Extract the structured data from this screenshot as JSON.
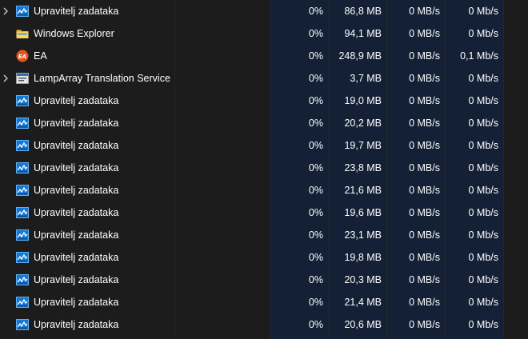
{
  "rows": [
    {
      "name": "Upravitelj zadataka",
      "icon": "task-manager-icon",
      "expandable": true,
      "cpu": "0%",
      "memory": "86,8 MB",
      "disk": "0 MB/s",
      "network": "0 Mb/s"
    },
    {
      "name": "Windows Explorer",
      "icon": "folder-icon",
      "expandable": false,
      "cpu": "0%",
      "memory": "94,1 MB",
      "disk": "0 MB/s",
      "network": "0 Mb/s"
    },
    {
      "name": "EA",
      "icon": "ea-logo-icon",
      "expandable": false,
      "cpu": "0%",
      "memory": "248,9 MB",
      "disk": "0 MB/s",
      "network": "0,1 Mb/s"
    },
    {
      "name": "LampArray Translation Service",
      "icon": "service-window-icon",
      "expandable": true,
      "cpu": "0%",
      "memory": "3,7 MB",
      "disk": "0 MB/s",
      "network": "0 Mb/s"
    },
    {
      "name": "Upravitelj zadataka",
      "icon": "task-manager-icon",
      "expandable": false,
      "cpu": "0%",
      "memory": "19,0 MB",
      "disk": "0 MB/s",
      "network": "0 Mb/s"
    },
    {
      "name": "Upravitelj zadataka",
      "icon": "task-manager-icon",
      "expandable": false,
      "cpu": "0%",
      "memory": "20,2 MB",
      "disk": "0 MB/s",
      "network": "0 Mb/s"
    },
    {
      "name": "Upravitelj zadataka",
      "icon": "task-manager-icon",
      "expandable": false,
      "cpu": "0%",
      "memory": "19,7 MB",
      "disk": "0 MB/s",
      "network": "0 Mb/s"
    },
    {
      "name": "Upravitelj zadataka",
      "icon": "task-manager-icon",
      "expandable": false,
      "cpu": "0%",
      "memory": "23,8 MB",
      "disk": "0 MB/s",
      "network": "0 Mb/s"
    },
    {
      "name": "Upravitelj zadataka",
      "icon": "task-manager-icon",
      "expandable": false,
      "cpu": "0%",
      "memory": "21,6 MB",
      "disk": "0 MB/s",
      "network": "0 Mb/s"
    },
    {
      "name": "Upravitelj zadataka",
      "icon": "task-manager-icon",
      "expandable": false,
      "cpu": "0%",
      "memory": "19,6 MB",
      "disk": "0 MB/s",
      "network": "0 Mb/s"
    },
    {
      "name": "Upravitelj zadataka",
      "icon": "task-manager-icon",
      "expandable": false,
      "cpu": "0%",
      "memory": "23,1 MB",
      "disk": "0 MB/s",
      "network": "0 Mb/s"
    },
    {
      "name": "Upravitelj zadataka",
      "icon": "task-manager-icon",
      "expandable": false,
      "cpu": "0%",
      "memory": "19,8 MB",
      "disk": "0 MB/s",
      "network": "0 Mb/s"
    },
    {
      "name": "Upravitelj zadataka",
      "icon": "task-manager-icon",
      "expandable": false,
      "cpu": "0%",
      "memory": "20,3 MB",
      "disk": "0 MB/s",
      "network": "0 Mb/s"
    },
    {
      "name": "Upravitelj zadataka",
      "icon": "task-manager-icon",
      "expandable": false,
      "cpu": "0%",
      "memory": "21,4 MB",
      "disk": "0 MB/s",
      "network": "0 Mb/s"
    },
    {
      "name": "Upravitelj zadataka",
      "icon": "task-manager-icon",
      "expandable": false,
      "cpu": "0%",
      "memory": "20,6 MB",
      "disk": "0 MB/s",
      "network": "0 Mb/s"
    }
  ],
  "colors": {
    "background": "#1c1c1c",
    "heat_column": "#142035",
    "divider": "#262626",
    "text": "#ffffff"
  }
}
